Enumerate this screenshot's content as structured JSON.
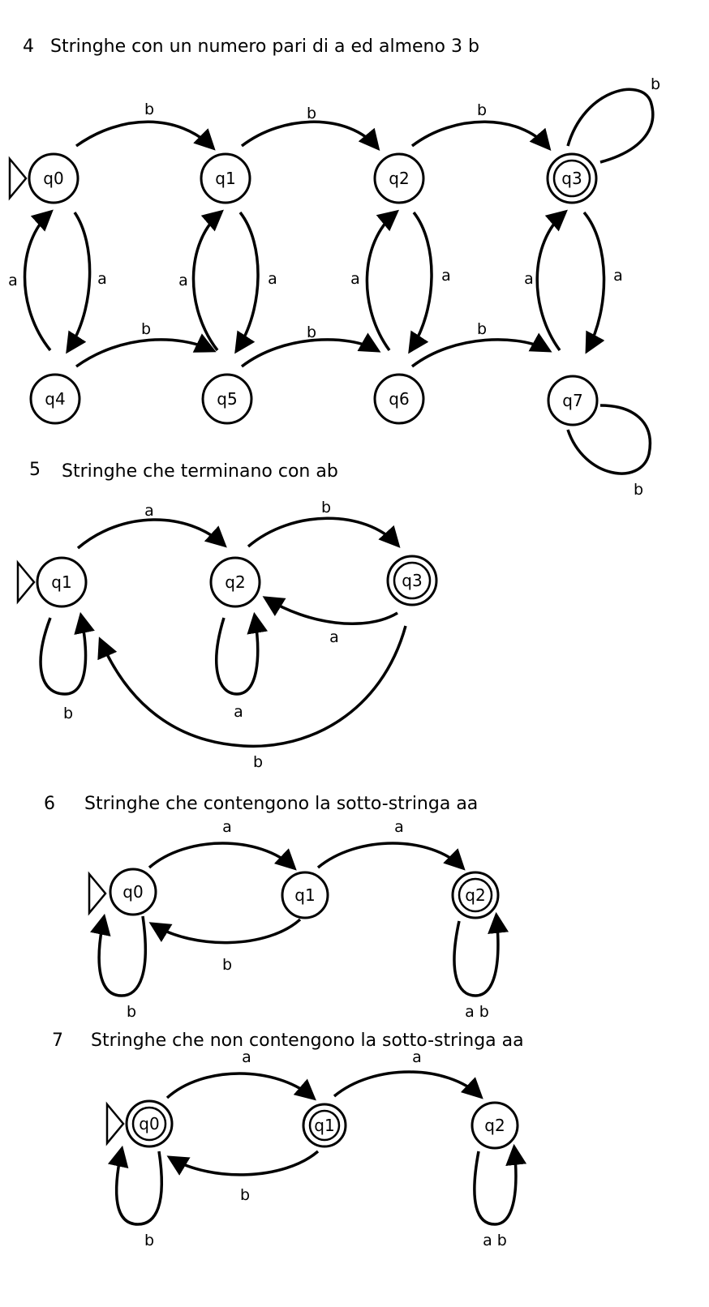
{
  "diagrams": [
    {
      "number": "4",
      "title": "Stringhe con un numero pari di a ed almeno 3 b",
      "states": [
        {
          "id": "q0",
          "label": "q0",
          "start": true,
          "final": false
        },
        {
          "id": "q1",
          "label": "q1",
          "start": false,
          "final": false
        },
        {
          "id": "q2",
          "label": "q2",
          "start": false,
          "final": false
        },
        {
          "id": "q3",
          "label": "q3",
          "start": false,
          "final": true
        },
        {
          "id": "q4",
          "label": "q4",
          "start": false,
          "final": false
        },
        {
          "id": "q5",
          "label": "q5",
          "start": false,
          "final": false
        },
        {
          "id": "q6",
          "label": "q6",
          "start": false,
          "final": false
        },
        {
          "id": "q7",
          "label": "q7",
          "start": false,
          "final": false
        }
      ],
      "transitions": [
        {
          "from": "q0",
          "to": "q1",
          "label": "b"
        },
        {
          "from": "q1",
          "to": "q2",
          "label": "b"
        },
        {
          "from": "q2",
          "to": "q3",
          "label": "b"
        },
        {
          "from": "q3",
          "to": "q3",
          "label": "b"
        },
        {
          "from": "q4",
          "to": "q5",
          "label": "b"
        },
        {
          "from": "q5",
          "to": "q6",
          "label": "b"
        },
        {
          "from": "q6",
          "to": "q7",
          "label": "b"
        },
        {
          "from": "q7",
          "to": "q7",
          "label": "b"
        },
        {
          "from": "q0",
          "to": "q4",
          "label": "a"
        },
        {
          "from": "q4",
          "to": "q0",
          "label": "a"
        },
        {
          "from": "q1",
          "to": "q5",
          "label": "a"
        },
        {
          "from": "q5",
          "to": "q1",
          "label": "a"
        },
        {
          "from": "q2",
          "to": "q6",
          "label": "a"
        },
        {
          "from": "q6",
          "to": "q2",
          "label": "a"
        },
        {
          "from": "q3",
          "to": "q7",
          "label": "a"
        },
        {
          "from": "q7",
          "to": "q3",
          "label": "a"
        }
      ]
    },
    {
      "number": "5",
      "title": "Stringhe che terminano con ab",
      "states": [
        {
          "id": "q1",
          "label": "q1",
          "start": true,
          "final": false
        },
        {
          "id": "q2",
          "label": "q2",
          "start": false,
          "final": false
        },
        {
          "id": "q3",
          "label": "q3",
          "start": false,
          "final": true
        }
      ],
      "transitions": [
        {
          "from": "q1",
          "to": "q2",
          "label": "a"
        },
        {
          "from": "q2",
          "to": "q3",
          "label": "b"
        },
        {
          "from": "q3",
          "to": "q2",
          "label": "a"
        },
        {
          "from": "q1",
          "to": "q1",
          "label": "b"
        },
        {
          "from": "q2",
          "to": "q2",
          "label": "a"
        },
        {
          "from": "q3",
          "to": "q1",
          "label": "b"
        }
      ]
    },
    {
      "number": "6",
      "title": "Stringhe che contengono la sotto-stringa aa",
      "states": [
        {
          "id": "q0",
          "label": "q0",
          "start": true,
          "final": false
        },
        {
          "id": "q1",
          "label": "q1",
          "start": false,
          "final": false
        },
        {
          "id": "q2",
          "label": "q2",
          "start": false,
          "final": true
        }
      ],
      "transitions": [
        {
          "from": "q0",
          "to": "q1",
          "label": "a"
        },
        {
          "from": "q1",
          "to": "q2",
          "label": "a"
        },
        {
          "from": "q1",
          "to": "q0",
          "label": "b"
        },
        {
          "from": "q0",
          "to": "q0",
          "label": "b"
        },
        {
          "from": "q2",
          "to": "q2",
          "label": "a b"
        }
      ]
    },
    {
      "number": "7",
      "title": "Stringhe che non contengono la sotto-stringa aa",
      "states": [
        {
          "id": "q0",
          "label": "q0",
          "start": true,
          "final": true
        },
        {
          "id": "q1",
          "label": "q1",
          "start": false,
          "final": true
        },
        {
          "id": "q2",
          "label": "q2",
          "start": false,
          "final": false
        }
      ],
      "transitions": [
        {
          "from": "q0",
          "to": "q1",
          "label": "a"
        },
        {
          "from": "q1",
          "to": "q2",
          "label": "a"
        },
        {
          "from": "q1",
          "to": "q0",
          "label": "b"
        },
        {
          "from": "q0",
          "to": "q0",
          "label": "b"
        },
        {
          "from": "q2",
          "to": "q2",
          "label": "a b"
        }
      ]
    }
  ]
}
